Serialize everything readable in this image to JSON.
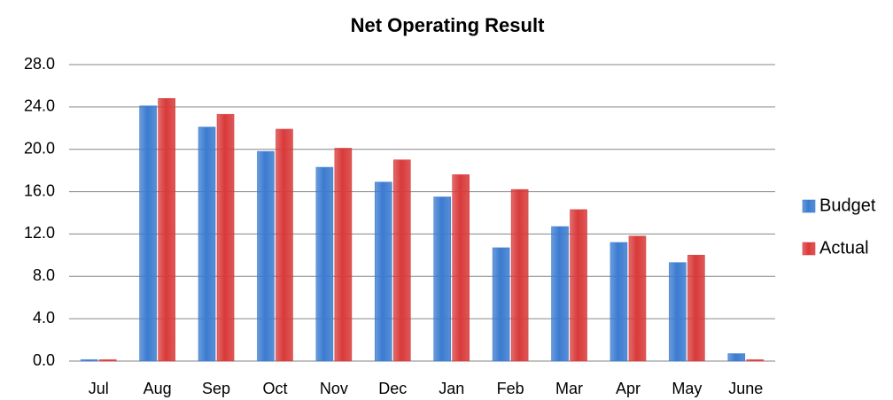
{
  "chart_data": {
    "type": "bar",
    "title": "Net Operating Result",
    "categories": [
      "Jul",
      "Aug",
      "Sep",
      "Oct",
      "Nov",
      "Dec",
      "Jan",
      "Feb",
      "Mar",
      "Apr",
      "May",
      "June"
    ],
    "series": [
      {
        "name": "Budget",
        "color": "#3b7bd0",
        "values": [
          0,
          24.1,
          22.1,
          19.8,
          18.3,
          16.9,
          15.5,
          10.7,
          12.7,
          11.2,
          9.3,
          0.7
        ]
      },
      {
        "name": "Actual",
        "color": "#d93a3a",
        "values": [
          0,
          24.8,
          23.3,
          21.9,
          20.1,
          19.0,
          17.6,
          16.2,
          14.3,
          11.8,
          10.0,
          0
        ]
      }
    ],
    "ylim": [
      0,
      28
    ],
    "yticks": [
      {
        "value": 0,
        "label": "0.0"
      },
      {
        "value": 4,
        "label": "4.0"
      },
      {
        "value": 8,
        "label": "8.0"
      },
      {
        "value": 12,
        "label": "12.0"
      },
      {
        "value": 16,
        "label": "16.0"
      },
      {
        "value": 20,
        "label": "20.0"
      },
      {
        "value": 24,
        "label": "24.0"
      },
      {
        "value": 28,
        "label": "28.0"
      }
    ],
    "grid": true,
    "legend": "right"
  }
}
